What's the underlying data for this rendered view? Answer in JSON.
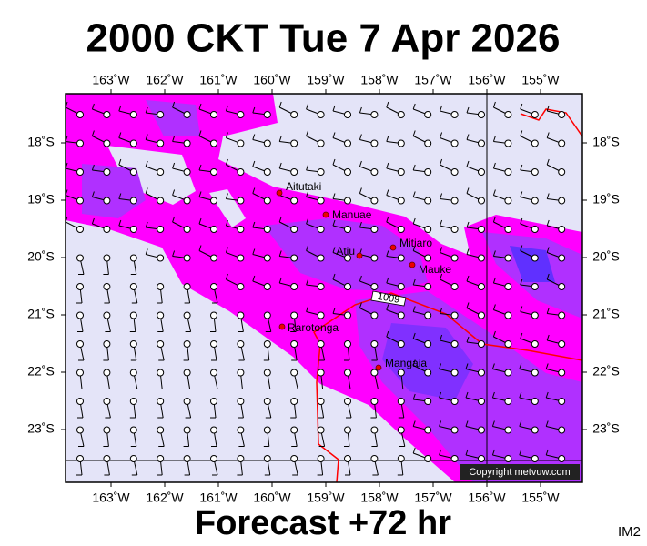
{
  "title": "2000 CKT Tue 7 Apr 2026",
  "footer": "Forecast +72 hr",
  "image_id": "IM2",
  "longitude_labels": [
    "163˚W",
    "162˚W",
    "161˚W",
    "160˚W",
    "159˚W",
    "158˚W",
    "157˚W",
    "156˚W",
    "155˚W"
  ],
  "latitude_labels": [
    "18˚S",
    "19˚S",
    "20˚S",
    "21˚S",
    "22˚S",
    "23˚S"
  ],
  "places": [
    "Aitutaki",
    "Manuae",
    "Mitiaro",
    "Atiu",
    "Mauke",
    "Rarotonga",
    "Mangaia"
  ],
  "isobar_label": "1009",
  "copyright": "Copyright metvuw.com"
}
